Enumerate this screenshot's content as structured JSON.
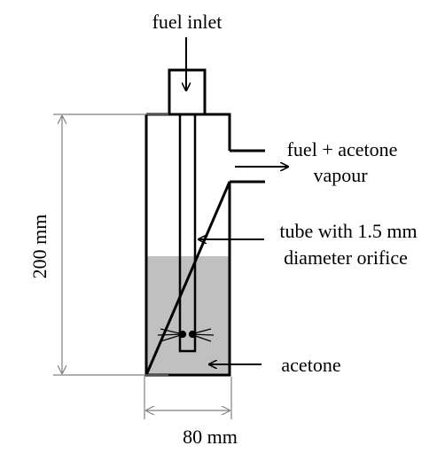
{
  "labels": {
    "fuel_inlet": "fuel inlet",
    "outlet_line1": "fuel + acetone",
    "outlet_line2": "vapour",
    "tube_line1": "tube with 1.5 mm",
    "tube_line2": "diameter orifice",
    "height_dim": "200 mm",
    "acetone": "acetone",
    "width_dim": "80 mm"
  },
  "colors": {
    "line": "#000000",
    "liquid": "#c0c0c0",
    "dimension": "#808080"
  }
}
